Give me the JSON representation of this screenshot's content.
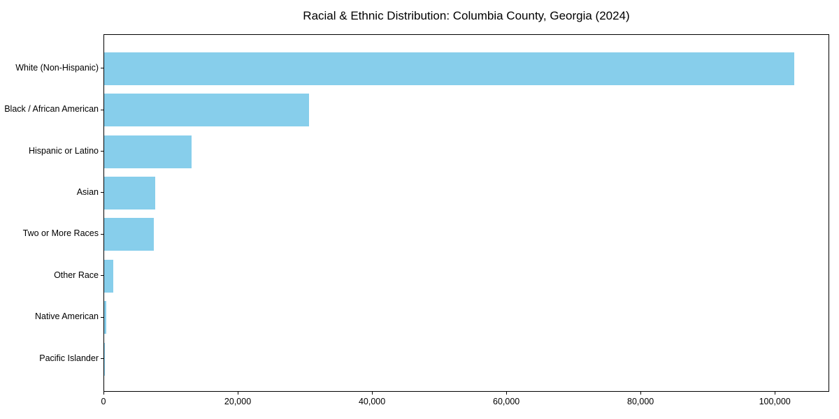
{
  "chart_data": {
    "type": "bar",
    "orientation": "horizontal",
    "title": "Racial & Ethnic Distribution: Columbia County, Georgia (2024)",
    "categories": [
      "White (Non-Hispanic)",
      "Black / African American",
      "Hispanic or Latino",
      "Asian",
      "Two or More Races",
      "Other Race",
      "Native American",
      "Pacific Islander"
    ],
    "values": [
      102900,
      30500,
      13000,
      7650,
      7350,
      1400,
      300,
      100
    ],
    "xlabel": "",
    "ylabel": "",
    "xlim": [
      0,
      108000
    ],
    "x_ticks": [
      0,
      20000,
      40000,
      60000,
      80000,
      100000
    ],
    "x_tick_labels": [
      "0",
      "20,000",
      "40,000",
      "60,000",
      "80,000",
      "100,000"
    ],
    "bar_color": "#87CEEB",
    "background_color": "#FFFFFF",
    "text_color": "#000000",
    "grid": false,
    "legend_position": "none"
  }
}
